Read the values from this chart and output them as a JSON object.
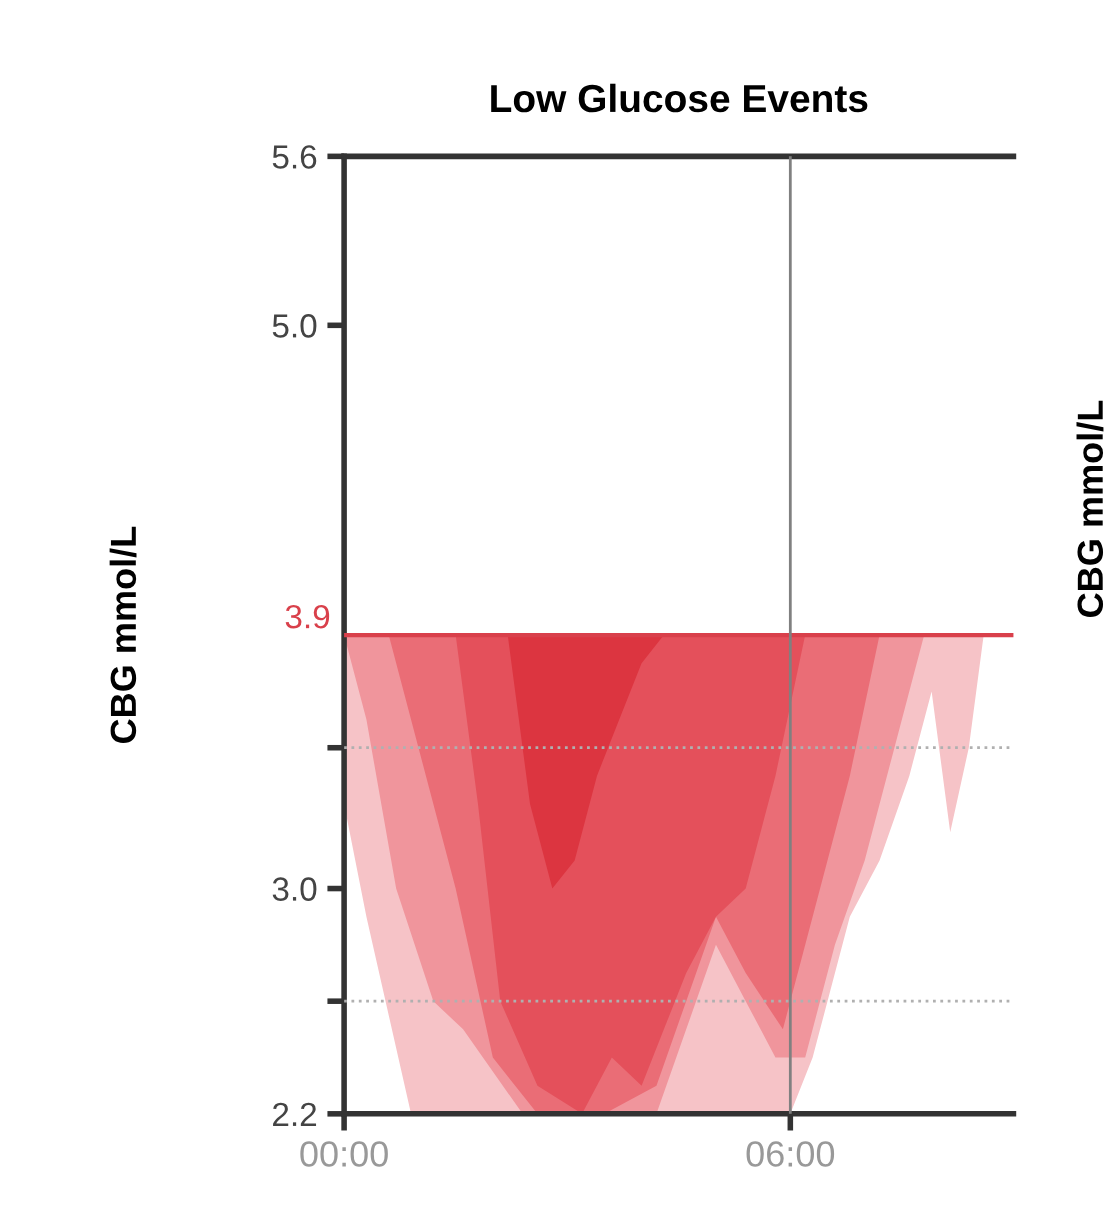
{
  "chart_data": {
    "type": "area",
    "title": "Low Glucose Events",
    "ylabel": "CBG mmol/L",
    "annotations": [
      "CBG mmol/L"
    ],
    "xlim": [
      0,
      9.0
    ],
    "xticks": [
      {
        "value": 0,
        "label": "00:00"
      },
      {
        "value": 6,
        "label": "06:00"
      }
    ],
    "ylim": [
      2.2,
      5.6
    ],
    "yticks": [
      2.2,
      {
        "value": 2.6,
        "label": null
      },
      {
        "value": 3.0,
        "label": "3.0"
      },
      {
        "value": 3.5,
        "label": null
      },
      {
        "value": 5.0,
        "label": "5.0"
      },
      5.6
    ],
    "grid": false,
    "legend": false,
    "ref_lines": [
      {
        "axis": "y",
        "value": 3.9,
        "label": "3.9",
        "color": "#d9404b",
        "line_style": "solid"
      },
      {
        "axis": "y",
        "value": 3.5,
        "color": "#b0b0b0",
        "line_style": "dotted"
      },
      {
        "axis": "y",
        "value": 2.6,
        "color": "#b0b0b0",
        "line_style": "dotted"
      },
      {
        "axis": "x",
        "value": 6,
        "color": "#808080",
        "line_style": "solid"
      }
    ],
    "series": [
      {
        "color": "#f6c3c7",
        "x": [
          0,
          0,
          0.3,
          0.9,
          2,
          3,
          4,
          5,
          6,
          6.3,
          6.8,
          7.2,
          7.6,
          7.9,
          8.15,
          8.4,
          8.6
        ],
        "values": [
          3.9,
          3.3,
          2.9,
          2.2,
          2.2,
          2.2,
          2.2,
          2.2,
          2.2,
          2.4,
          2.9,
          3.1,
          3.4,
          3.7,
          3.2,
          3.5,
          3.9
        ]
      },
      {
        "color": "#f0959c",
        "x": [
          0,
          0.3,
          0.7,
          1.2,
          1.6,
          2.4,
          3.5,
          4.2,
          4.6,
          5.0,
          5.4,
          5.8,
          6.2,
          6.6,
          7.0,
          7.4,
          7.8
        ],
        "values": [
          3.9,
          3.6,
          3.0,
          2.6,
          2.5,
          2.2,
          2.2,
          2.2,
          2.5,
          2.8,
          2.6,
          2.4,
          2.4,
          2.8,
          3.1,
          3.5,
          3.9
        ]
      },
      {
        "color": "#ea6d76",
        "x": [
          0.6,
          1.0,
          1.5,
          2.0,
          2.6,
          3.5,
          4.2,
          4.6,
          5.0,
          5.4,
          5.9,
          6.3,
          6.8,
          7.2
        ],
        "values": [
          3.9,
          3.5,
          3.0,
          2.4,
          2.2,
          2.2,
          2.3,
          2.6,
          2.9,
          2.7,
          2.5,
          2.9,
          3.4,
          3.9
        ]
      },
      {
        "color": "#e4505b",
        "x": [
          1.5,
          1.8,
          2.1,
          2.6,
          3.2,
          3.6,
          4.0,
          4.3,
          4.6,
          5.0,
          5.4,
          5.8,
          6.2
        ],
        "values": [
          3.9,
          3.3,
          2.6,
          2.3,
          2.2,
          2.4,
          2.3,
          2.5,
          2.7,
          2.9,
          3.0,
          3.4,
          3.9
        ]
      },
      {
        "color": "#dc3540",
        "x": [
          2.2,
          2.5,
          2.8,
          3.1,
          3.4,
          3.7,
          4.0,
          4.3
        ],
        "values": [
          3.9,
          3.3,
          3.0,
          3.1,
          3.4,
          3.6,
          3.8,
          3.9
        ]
      }
    ]
  }
}
